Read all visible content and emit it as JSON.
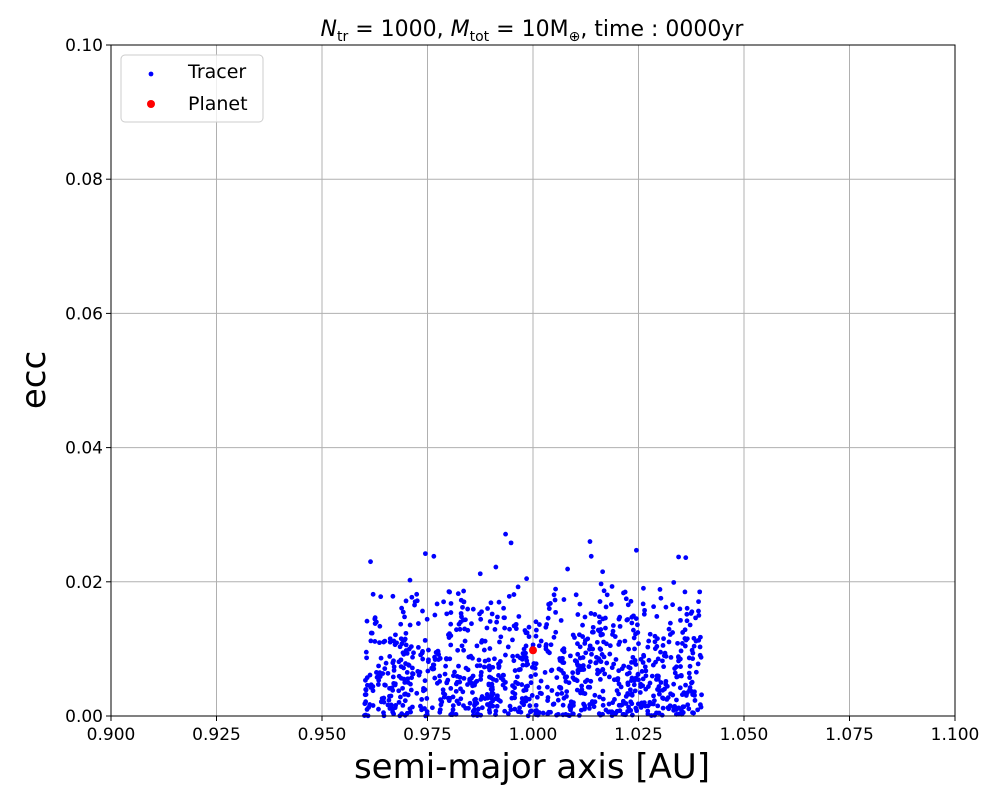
{
  "chart_data": {
    "type": "scatter",
    "title": "N_tr = 1000, M_tot = 10M⊕, time : 0000yr",
    "title_parts": {
      "n_sym": "N",
      "n_sub": "tr",
      "n_eq": " = 1000, ",
      "m_sym": "M",
      "m_sub": "tot",
      "m_eq": " = 10M",
      "m_subsym": "⊕",
      "time_text": ", time : 0000yr"
    },
    "xlabel": "semi-major axis [AU]",
    "ylabel": "ecc",
    "xlim": [
      0.9,
      1.1
    ],
    "ylim": [
      0.0,
      0.1
    ],
    "xticks": [
      0.9,
      0.925,
      0.95,
      0.975,
      1.0,
      1.025,
      1.05,
      1.075,
      1.1
    ],
    "xtick_labels": [
      "0.900",
      "0.925",
      "0.950",
      "0.975",
      "1.000",
      "1.025",
      "1.050",
      "1.075",
      "1.100"
    ],
    "yticks": [
      0.0,
      0.02,
      0.04,
      0.06,
      0.08,
      0.1
    ],
    "ytick_labels": [
      "0.00",
      "0.02",
      "0.04",
      "0.06",
      "0.08",
      "0.10"
    ],
    "grid": true,
    "legend_position": "top-left",
    "series": [
      {
        "name": "Tracer",
        "color": "#0000ff",
        "marker": "dot",
        "distribution": {
          "count": 1000,
          "a_range": [
            0.96,
            1.04
          ],
          "ecc_range": [
            0.0,
            0.027
          ]
        },
        "points": [
          [
            0.9615,
            0.023
          ],
          [
            0.9745,
            0.0242
          ],
          [
            0.9765,
            0.0238
          ],
          [
            0.9935,
            0.0271
          ],
          [
            0.9948,
            0.0258
          ],
          [
            1.0135,
            0.026
          ],
          [
            1.0138,
            0.0238
          ],
          [
            1.0245,
            0.0247
          ],
          [
            1.0345,
            0.0237
          ],
          [
            1.0362,
            0.0236
          ],
          [
            1.0395,
            0.0185
          ],
          [
            1.0082,
            0.0219
          ],
          [
            0.9875,
            0.0212
          ],
          [
            0.9912,
            0.0222
          ],
          [
            1.0165,
            0.0215
          ],
          [
            0.9702,
            0.0004
          ],
          [
            1.0352,
            0.0008
          ],
          [
            1.0378,
            0.0005
          ],
          [
            0.9805,
            0.0002
          ]
        ]
      },
      {
        "name": "Planet",
        "color": "#ff0000",
        "marker": "dot",
        "points": [
          [
            1.0,
            0.0098
          ]
        ]
      }
    ]
  }
}
